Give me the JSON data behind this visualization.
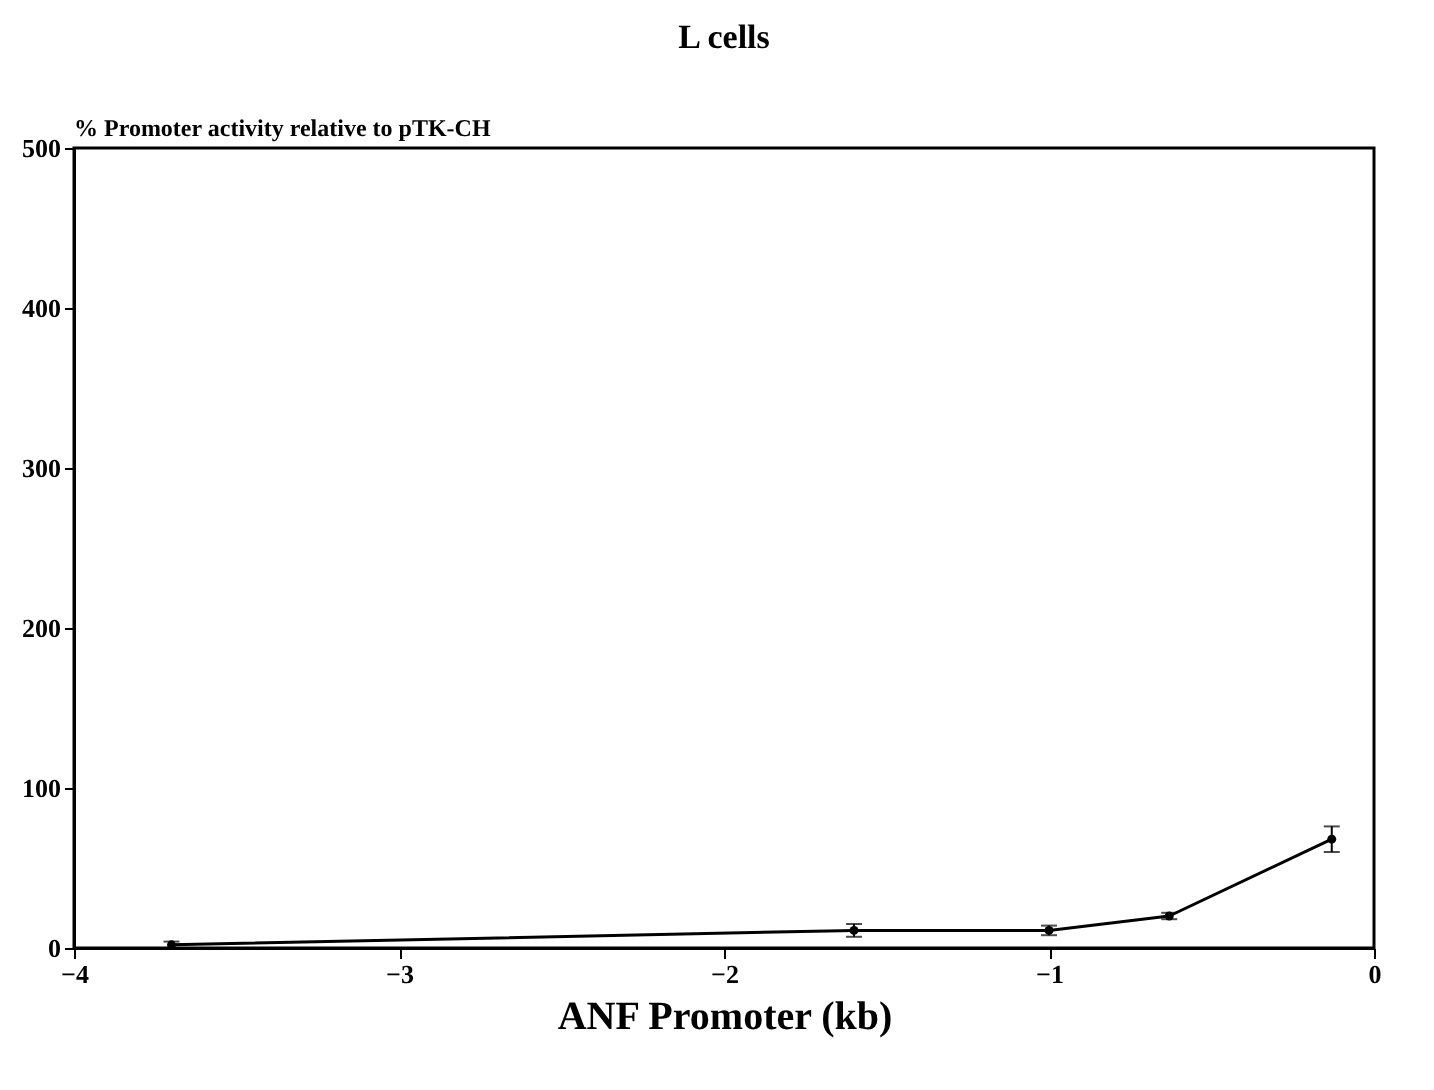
{
  "chart_data": {
    "type": "line",
    "title": "L cells",
    "xlabel": "ANF Promoter (kb)",
    "ylabel": "% Promoter activity relative to pTK-CH",
    "x": [
      -3.7,
      -1.6,
      -1.0,
      -0.63,
      -0.13
    ],
    "series": [
      {
        "color": "#000000",
        "values": [
          2,
          11,
          11,
          20,
          68
        ],
        "errors": [
          2,
          4,
          3,
          2,
          8
        ]
      }
    ],
    "xlim": [
      -4,
      0
    ],
    "xticks": [
      -4,
      -3,
      -2,
      -1,
      0
    ],
    "ylim": [
      0,
      500
    ],
    "yticks": [
      0,
      100,
      200,
      300,
      400,
      500
    ],
    "grid": false,
    "marker": "circle",
    "line_style": "solid"
  }
}
